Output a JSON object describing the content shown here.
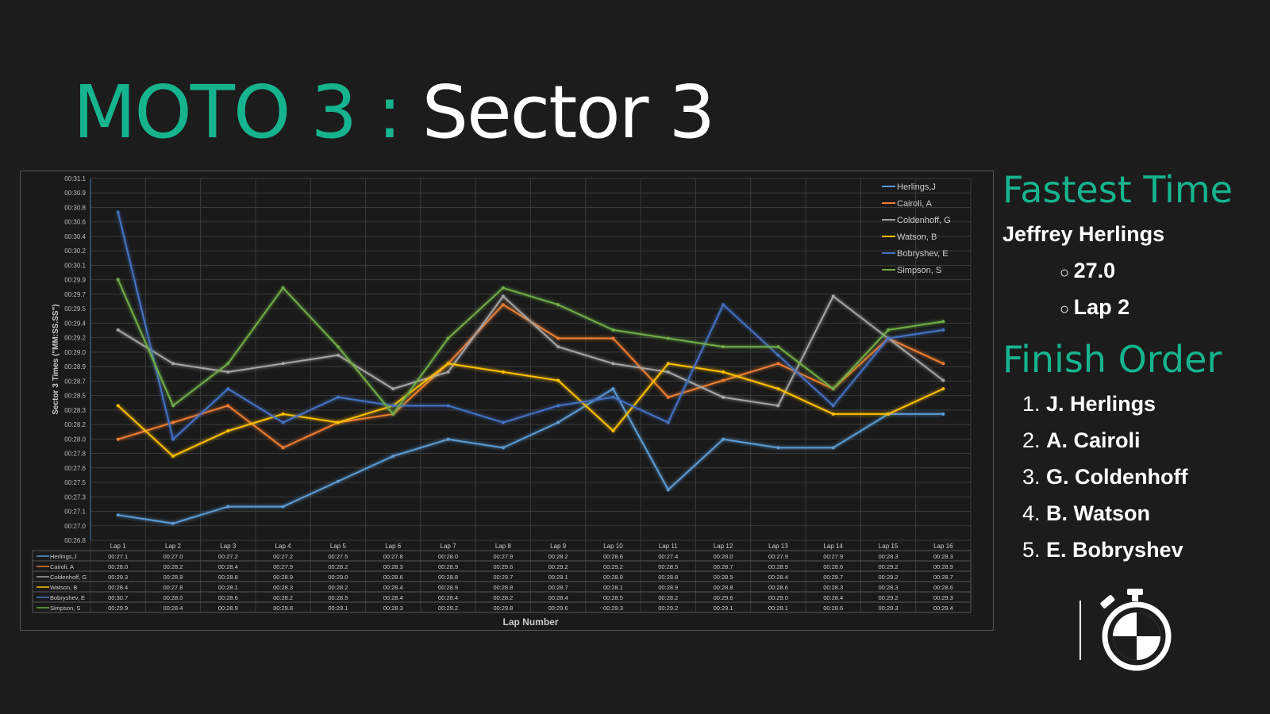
{
  "title": {
    "part1": "MOTO 3 :",
    "part2": "Sector 3"
  },
  "fastest": {
    "heading": "Fastest Time",
    "rider": "Jeffrey Herlings",
    "items": [
      "27.0",
      "Lap 2"
    ]
  },
  "finish": {
    "heading": "Finish Order",
    "items": [
      "J. Herlings",
      "A. Cairoli",
      "G. Coldenhoff",
      "B. Watson",
      "E. Bobryshev"
    ]
  },
  "chart_data": {
    "type": "line",
    "ylabel": "Sector 3 Times (\"MM:SS.SS\")",
    "xlabel": "Lap Number",
    "ylim": [
      26.8,
      31.1
    ],
    "yticks": [
      "00:31.1",
      "00:30.9",
      "00:30.8",
      "00:30.6",
      "00:30.4",
      "00:30.2",
      "00:30.1",
      "00:29.9",
      "00:29.7",
      "00:29.5",
      "00:29.4",
      "00:29.2",
      "00:29.0",
      "00:28.9",
      "00:28.7",
      "00:28.5",
      "00:28.3",
      "00:28.2",
      "00:28.0",
      "00:27.8",
      "00:27.6",
      "00:27.5",
      "00:27.3",
      "00:27.1",
      "00:27.0",
      "00:26.8"
    ],
    "categories": [
      "Lap 1",
      "Lap 2",
      "Lap 3",
      "Lap 4",
      "Lap 5",
      "Lap 6",
      "Lap 7",
      "Lap 8",
      "Lap 9",
      "Lap 10",
      "Lap 11",
      "Lap 12",
      "Lap 13",
      "Lap 14",
      "Lap 15",
      "Lap 16"
    ],
    "legend": "top-right",
    "series": [
      {
        "name": "Herlings,J",
        "color": "#5b9bd5",
        "values": [
          27.1,
          27.0,
          27.2,
          27.2,
          27.5,
          27.8,
          28.0,
          27.9,
          28.2,
          28.6,
          27.4,
          28.0,
          27.9,
          27.9,
          28.3,
          28.3
        ]
      },
      {
        "name": "Cairoli, A",
        "color": "#ed7d31",
        "values": [
          28.0,
          28.2,
          28.4,
          27.9,
          28.2,
          28.3,
          28.9,
          29.6,
          29.2,
          29.2,
          28.5,
          28.7,
          28.9,
          28.6,
          29.2,
          28.9
        ]
      },
      {
        "name": "Coldenhoff, G",
        "color": "#a5a5a5",
        "values": [
          29.3,
          28.9,
          28.8,
          28.9,
          29.0,
          28.6,
          28.8,
          29.7,
          29.1,
          28.9,
          28.8,
          28.5,
          28.4,
          29.7,
          29.2,
          28.7
        ]
      },
      {
        "name": "Watson, B",
        "color": "#ffc000",
        "values": [
          28.4,
          27.8,
          28.1,
          28.3,
          28.2,
          28.4,
          28.9,
          28.8,
          28.7,
          28.1,
          28.9,
          28.8,
          28.6,
          28.3,
          28.3,
          28.6
        ]
      },
      {
        "name": "Bobryshev, E",
        "color": "#4472c4",
        "values": [
          30.7,
          28.0,
          28.6,
          28.2,
          28.5,
          28.4,
          28.4,
          28.2,
          28.4,
          28.5,
          28.2,
          29.6,
          29.0,
          28.4,
          29.2,
          29.3
        ]
      },
      {
        "name": "Simpson, S",
        "color": "#70ad47",
        "values": [
          29.9,
          28.4,
          28.9,
          29.8,
          29.1,
          28.3,
          29.2,
          29.8,
          29.6,
          29.3,
          29.2,
          29.1,
          29.1,
          28.6,
          29.3,
          29.4
        ]
      }
    ]
  }
}
